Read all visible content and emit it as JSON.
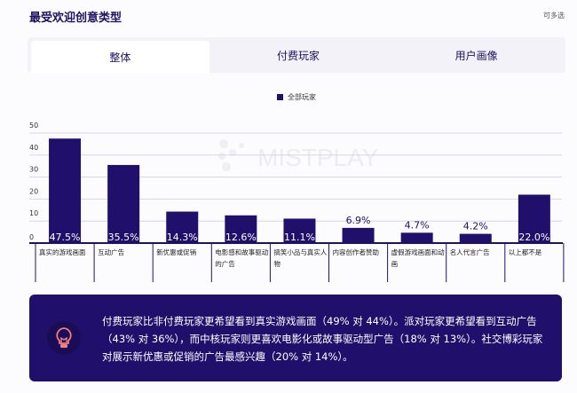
{
  "header": {
    "title": "最受欢迎创意类型",
    "note": "可多选"
  },
  "tabs": [
    {
      "label": "整体",
      "active": true
    },
    {
      "label": "付费玩家"
    },
    {
      "label": "用户画像"
    }
  ],
  "watermark": "MISTPLAY",
  "chart_data": {
    "type": "bar",
    "categories": [
      "真实的游戏画面",
      "互动广告",
      "新优惠或促销",
      "电影感和故事驱动的广告",
      "搞笑小品与真实人物",
      "内容创作者赞助",
      "虚假游戏画面和动画",
      "名人代言广告",
      "以上都不是"
    ],
    "series": [
      {
        "name": "全部玩家",
        "values": [
          47.5,
          35.5,
          14.3,
          12.6,
          11.1,
          6.9,
          4.7,
          4.2,
          22.0
        ]
      }
    ],
    "data_labels": [
      "47.5%",
      "35.5%",
      "14.3%",
      "12.6%",
      "11.1%",
      "6.9%",
      "4.7%",
      "4.2%",
      "22.0%"
    ],
    "yticks": [
      0,
      10,
      20,
      30,
      40,
      50
    ],
    "ylim": [
      0,
      50
    ],
    "grid": true,
    "legend": "top-center",
    "color": "#21106b"
  },
  "insight": {
    "icon": "lightbulb-icon",
    "text": "付费玩家比非付费玩家更希望看到真实游戏画面（49% 对 44%）。派对玩家更希望看到互动广告（43% 对 36%），而中核玩家则更喜欢电影化或故事驱动型广告（18% 对 13%）。社交博彩玩家对展示新优惠或促销的广告最感兴趣（20% 对 14%）。"
  }
}
